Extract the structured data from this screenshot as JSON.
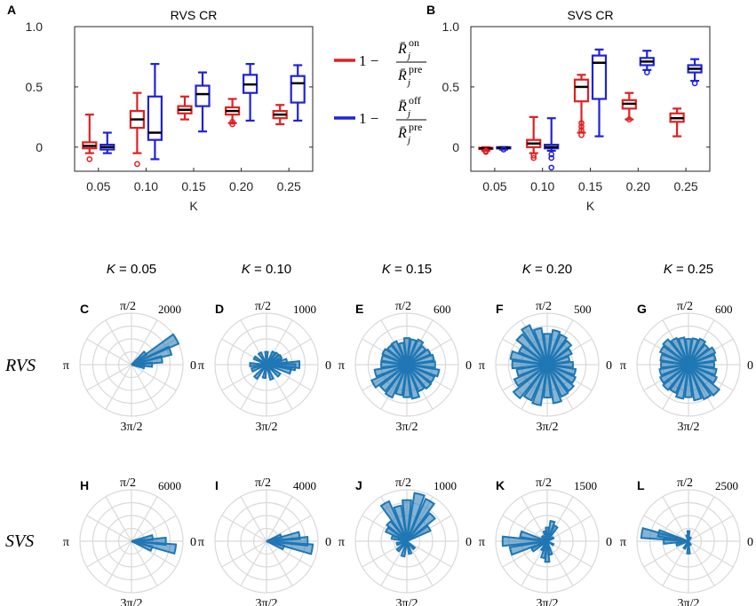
{
  "colors": {
    "red": "#e02020",
    "blue": "#1f22d8",
    "hist": "#1f77b4",
    "median": "#000000"
  },
  "legend": {
    "items": [
      {
        "color_key": "red",
        "prefix": "1 −",
        "num": "R̄",
        "num_sup": "on",
        "num_sub": "j",
        "den": "R̄",
        "den_sup": "pre",
        "den_sub": "j"
      },
      {
        "color_key": "blue",
        "prefix": "1 −",
        "num": "R̄",
        "num_sup": "off",
        "num_sub": "j",
        "den": "R̄",
        "den_sup": "pre",
        "den_sub": "j"
      }
    ]
  },
  "row_labels": {
    "rvs": "RVS",
    "svs": "SVS"
  },
  "k_titles": [
    "K = 0.05",
    "K = 0.10",
    "K = 0.15",
    "K = 0.20",
    "K = 0.25"
  ],
  "k_titles_parts": [
    {
      "k": "K",
      "rest": " = 0.05"
    },
    {
      "k": "K",
      "rest": " = 0.10"
    },
    {
      "k": "K",
      "rest": " = 0.15"
    },
    {
      "k": "K",
      "rest": " = 0.20"
    },
    {
      "k": "K",
      "rest": " = 0.25"
    }
  ],
  "polar_axis_labels": {
    "top": "π/2",
    "left": "π",
    "right": "0",
    "bottom": "3π/2"
  },
  "chart_data": [
    {
      "panel": "A",
      "type": "box",
      "title": "RVS CR",
      "xlabel": "K",
      "ylabel": "",
      "categories": [
        "0.05",
        "0.10",
        "0.15",
        "0.20",
        "0.25"
      ],
      "ylim": [
        -0.2,
        1.0
      ],
      "yticks": [
        "0",
        "0.5",
        "1.0"
      ],
      "ytick_values": [
        0,
        0.5,
        1.0
      ],
      "series": [
        {
          "name": "on",
          "color_key": "red",
          "boxes": [
            {
              "whisker_low": -0.05,
              "q1": -0.01,
              "median": 0.01,
              "q3": 0.04,
              "whisker_high": 0.27,
              "outliers": [
                -0.1
              ]
            },
            {
              "whisker_low": -0.05,
              "q1": 0.16,
              "median": 0.23,
              "q3": 0.3,
              "whisker_high": 0.45,
              "outliers": [
                -0.14
              ]
            },
            {
              "whisker_low": 0.23,
              "q1": 0.28,
              "median": 0.31,
              "q3": 0.34,
              "whisker_high": 0.42,
              "outliers": []
            },
            {
              "whisker_low": 0.2,
              "q1": 0.27,
              "median": 0.3,
              "q3": 0.33,
              "whisker_high": 0.4,
              "outliers": [
                0.21,
                0.19
              ]
            },
            {
              "whisker_low": 0.19,
              "q1": 0.24,
              "median": 0.27,
              "q3": 0.3,
              "whisker_high": 0.35,
              "outliers": []
            }
          ]
        },
        {
          "name": "off",
          "color_key": "blue",
          "boxes": [
            {
              "whisker_low": -0.05,
              "q1": -0.02,
              "median": 0.0,
              "q3": 0.02,
              "whisker_high": 0.12,
              "outliers": []
            },
            {
              "whisker_low": -0.1,
              "q1": 0.06,
              "median": 0.12,
              "q3": 0.42,
              "whisker_high": 0.69,
              "outliers": []
            },
            {
              "whisker_low": 0.13,
              "q1": 0.34,
              "median": 0.44,
              "q3": 0.51,
              "whisker_high": 0.62,
              "outliers": []
            },
            {
              "whisker_low": 0.22,
              "q1": 0.45,
              "median": 0.52,
              "q3": 0.6,
              "whisker_high": 0.69,
              "outliers": []
            },
            {
              "whisker_low": 0.22,
              "q1": 0.37,
              "median": 0.53,
              "q3": 0.59,
              "whisker_high": 0.68,
              "outliers": []
            }
          ]
        }
      ]
    },
    {
      "panel": "B",
      "type": "box",
      "title": "SVS CR",
      "xlabel": "K",
      "ylabel": "",
      "categories": [
        "0.05",
        "0.10",
        "0.15",
        "0.20",
        "0.25"
      ],
      "ylim": [
        -0.2,
        1.0
      ],
      "yticks": [
        "0",
        "0.5",
        "1.0"
      ],
      "ytick_values": [
        0,
        0.5,
        1.0
      ],
      "series": [
        {
          "name": "on",
          "color_key": "red",
          "boxes": [
            {
              "whisker_low": -0.03,
              "q1": -0.015,
              "median": -0.01,
              "q3": -0.005,
              "whisker_high": 0.0,
              "outliers": [
                -0.03,
                -0.04
              ]
            },
            {
              "whisker_low": -0.05,
              "q1": 0.0,
              "median": 0.03,
              "q3": 0.06,
              "whisker_high": 0.25,
              "outliers": [
                -0.07,
                -0.09
              ]
            },
            {
              "whisker_low": 0.12,
              "q1": 0.38,
              "median": 0.5,
              "q3": 0.56,
              "whisker_high": 0.6,
              "outliers": [
                0.2,
                0.17,
                0.14,
                0.1
              ]
            },
            {
              "whisker_low": 0.23,
              "q1": 0.32,
              "median": 0.36,
              "q3": 0.39,
              "whisker_high": 0.45,
              "outliers": [
                0.23
              ]
            },
            {
              "whisker_low": 0.09,
              "q1": 0.21,
              "median": 0.24,
              "q3": 0.28,
              "whisker_high": 0.32,
              "outliers": []
            }
          ]
        },
        {
          "name": "off",
          "color_key": "blue",
          "boxes": [
            {
              "whisker_low": -0.02,
              "q1": -0.01,
              "median": -0.005,
              "q3": 0.0,
              "whisker_high": 0.0,
              "outliers": [
                -0.02
              ]
            },
            {
              "whisker_low": -0.03,
              "q1": -0.01,
              "median": 0.0,
              "q3": 0.02,
              "whisker_high": 0.24,
              "outliers": [
                -0.06,
                -0.09,
                -0.17
              ]
            },
            {
              "whisker_low": 0.09,
              "q1": 0.4,
              "median": 0.7,
              "q3": 0.76,
              "whisker_high": 0.81,
              "outliers": []
            },
            {
              "whisker_low": 0.64,
              "q1": 0.68,
              "median": 0.71,
              "q3": 0.74,
              "whisker_high": 0.8,
              "outliers": [
                0.62
              ]
            },
            {
              "whisker_low": 0.55,
              "q1": 0.62,
              "median": 0.65,
              "q3": 0.68,
              "whisker_high": 0.73,
              "outliers": [
                0.53
              ]
            }
          ]
        }
      ]
    },
    {
      "panel": "C",
      "type": "polar-histogram",
      "row": "RVS",
      "k": "0.05",
      "rlim_label": "2000",
      "rmax": 2000,
      "bins_deg": [
        0,
        10,
        20,
        30,
        40,
        350
      ],
      "counts": [
        800,
        1200,
        1600,
        2000,
        700,
        500
      ]
    },
    {
      "panel": "D",
      "type": "polar-histogram",
      "row": "RVS",
      "k": "0.10",
      "rlim_label": "1000",
      "rmax": 1000,
      "bins_deg": [
        0,
        10,
        20,
        30,
        45,
        60,
        90,
        120,
        150,
        180,
        200,
        230,
        260,
        290,
        320,
        345,
        355
      ],
      "counts": [
        640,
        400,
        300,
        320,
        300,
        280,
        250,
        260,
        270,
        320,
        300,
        330,
        260,
        300,
        320,
        480,
        560
      ]
    },
    {
      "panel": "E",
      "type": "polar-histogram",
      "row": "RVS",
      "k": "0.15",
      "rlim_label": "600",
      "rmax": 600,
      "bins_deg": [
        0,
        15,
        30,
        45,
        60,
        75,
        90,
        105,
        120,
        135,
        150,
        165,
        180,
        195,
        210,
        225,
        240,
        255,
        270,
        285,
        300,
        315,
        330,
        345
      ],
      "counts": [
        330,
        320,
        300,
        280,
        320,
        300,
        310,
        260,
        300,
        290,
        310,
        300,
        300,
        380,
        450,
        400,
        420,
        360,
        380,
        400,
        340,
        360,
        350,
        380
      ]
    },
    {
      "panel": "F",
      "type": "polar-histogram",
      "row": "RVS",
      "k": "0.20",
      "rlim_label": "500",
      "rmax": 500,
      "bins_deg": [
        0,
        15,
        30,
        45,
        60,
        75,
        90,
        105,
        120,
        135,
        150,
        165,
        180,
        195,
        210,
        225,
        240,
        255,
        270,
        285,
        300,
        315,
        330,
        345
      ],
      "counts": [
        250,
        220,
        260,
        300,
        320,
        340,
        300,
        360,
        420,
        380,
        300,
        360,
        340,
        300,
        350,
        420,
        380,
        400,
        320,
        380,
        340,
        330,
        300,
        280
      ]
    },
    {
      "panel": "G",
      "type": "polar-histogram",
      "row": "RVS",
      "k": "0.25",
      "rlim_label": "600",
      "rmax": 600,
      "bins_deg": [
        0,
        15,
        30,
        45,
        60,
        75,
        90,
        105,
        120,
        135,
        150,
        165,
        180,
        195,
        210,
        225,
        240,
        255,
        270,
        285,
        300,
        315,
        330,
        345
      ],
      "counts": [
        300,
        320,
        340,
        300,
        330,
        310,
        300,
        320,
        340,
        380,
        360,
        330,
        320,
        340,
        360,
        380,
        360,
        400,
        380,
        420,
        440,
        460,
        360,
        330
      ]
    },
    {
      "panel": "H",
      "type": "polar-histogram",
      "row": "SVS",
      "k": "0.05",
      "rlim_label": "6000",
      "rmax": 6000,
      "bins_deg": [
        0,
        10,
        350,
        340
      ],
      "counts": [
        4000,
        2500,
        5200,
        2500
      ]
    },
    {
      "panel": "I",
      "type": "polar-histogram",
      "row": "SVS",
      "k": "0.10",
      "rlim_label": "4000",
      "rmax": 4000,
      "bins_deg": [
        0,
        10,
        20,
        350,
        340
      ],
      "counts": [
        3200,
        2600,
        1200,
        3600,
        1400
      ]
    },
    {
      "panel": "J",
      "type": "polar-histogram",
      "row": "SVS",
      "k": "0.15",
      "rlim_label": "1000",
      "rmax": 1000,
      "bins_deg": [
        30,
        45,
        60,
        75,
        90,
        105,
        120,
        135,
        150,
        165,
        195,
        225,
        255,
        285,
        315
      ],
      "counts": [
        500,
        700,
        900,
        950,
        800,
        700,
        850,
        500,
        450,
        300,
        200,
        250,
        300,
        250,
        200
      ]
    },
    {
      "panel": "K",
      "type": "polar-histogram",
      "row": "SVS",
      "k": "0.20",
      "rlim_label": "1500",
      "rmax": 1500,
      "bins_deg": [
        30,
        60,
        75,
        90,
        105,
        135,
        165,
        180,
        195,
        210,
        240,
        255,
        270,
        285,
        330
      ],
      "counts": [
        200,
        500,
        600,
        400,
        300,
        200,
        800,
        1300,
        1100,
        500,
        300,
        500,
        600,
        400,
        200
      ]
    },
    {
      "panel": "L",
      "type": "polar-histogram",
      "row": "SVS",
      "k": "0.25",
      "rlim_label": "2500",
      "rmax": 2500,
      "bins_deg": [
        60,
        90,
        105,
        165,
        170,
        180,
        195,
        240,
        270,
        300
      ],
      "counts": [
        200,
        500,
        300,
        1500,
        2300,
        1200,
        600,
        400,
        600,
        200
      ]
    }
  ]
}
